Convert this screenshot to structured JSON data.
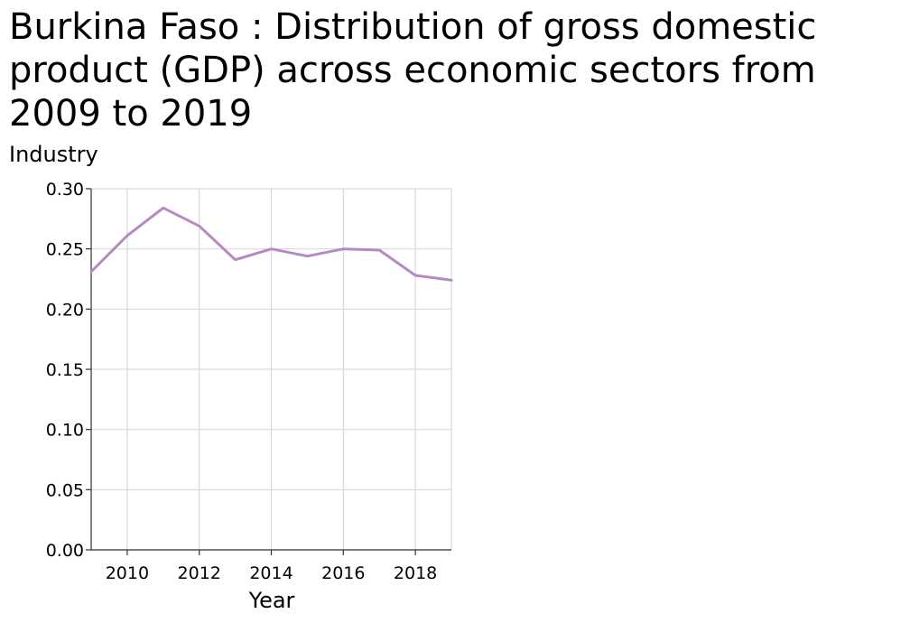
{
  "chart_data": {
    "type": "line",
    "title": "Burkina Faso : Distribution of gross domestic product (GDP) across economic sectors from 2009 to 2019",
    "ylabel": "Industry",
    "xlabel": "Year",
    "x": [
      2009,
      2010,
      2011,
      2012,
      2013,
      2014,
      2015,
      2016,
      2017,
      2018,
      2019
    ],
    "series": [
      {
        "values": [
          0.231,
          0.261,
          0.284,
          0.269,
          0.241,
          0.25,
          0.244,
          0.25,
          0.249,
          0.228,
          0.224
        ],
        "color": "#b58ac4"
      }
    ],
    "xlim": [
      2009,
      2019
    ],
    "ylim": [
      0,
      0.3
    ],
    "xticks": [
      "2010",
      "2012",
      "2014",
      "2016",
      "2018"
    ],
    "xtick_values": [
      2010,
      2012,
      2014,
      2016,
      2018
    ],
    "yticks": [
      "0.00",
      "0.05",
      "0.10",
      "0.15",
      "0.20",
      "0.25",
      "0.30"
    ],
    "ytick_values": [
      0,
      0.05,
      0.1,
      0.15,
      0.2,
      0.25,
      0.3
    ],
    "grid": true,
    "legend": "none"
  }
}
